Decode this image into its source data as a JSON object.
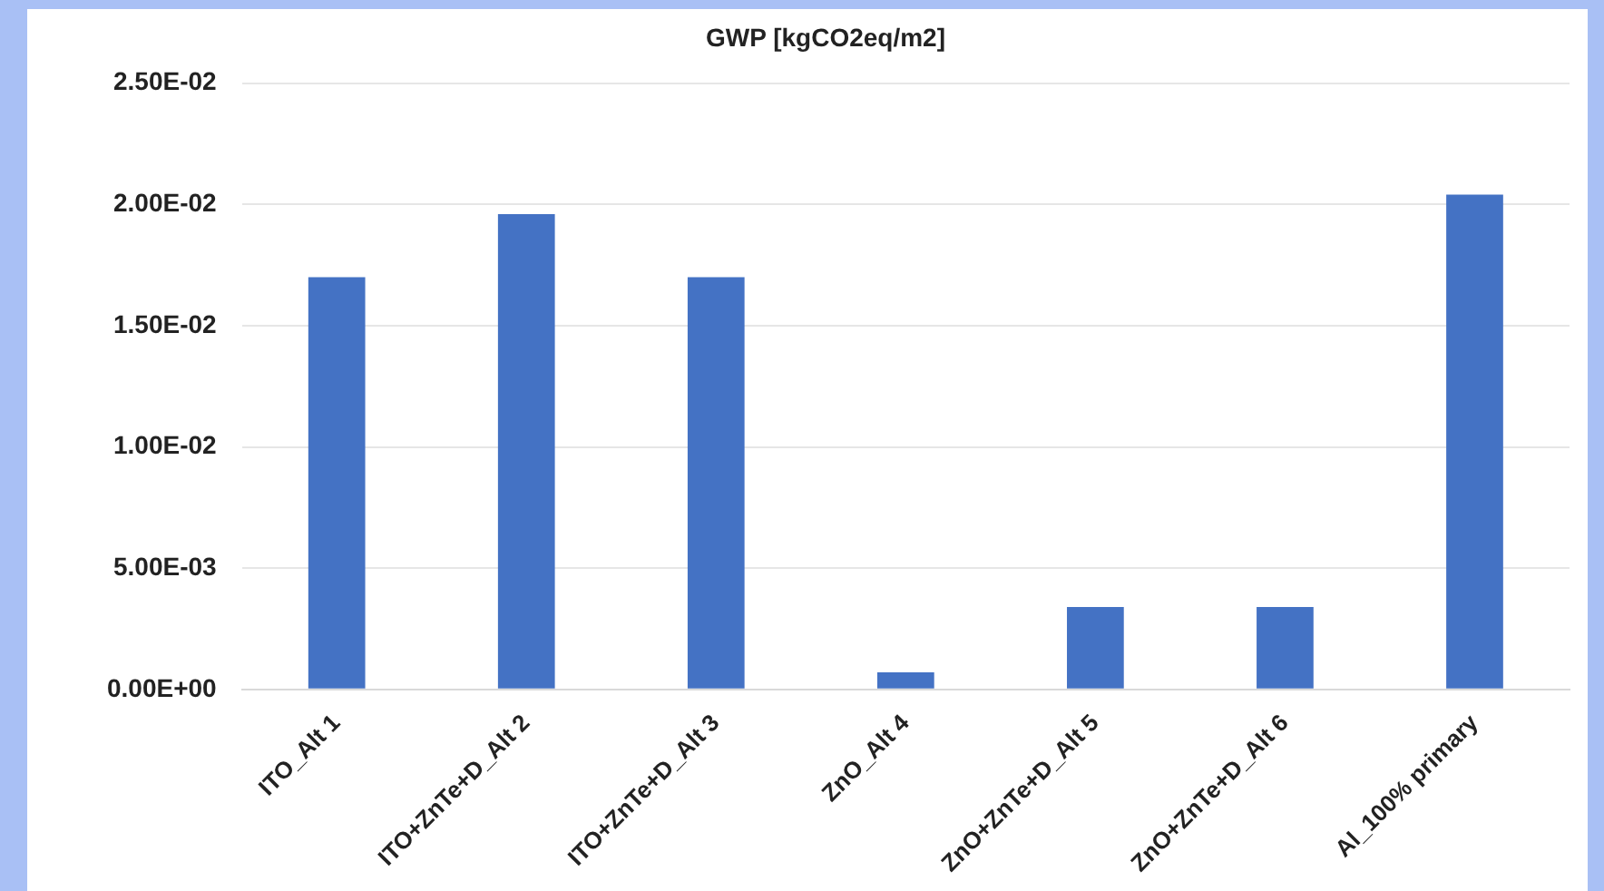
{
  "chart_data": {
    "type": "bar",
    "title": "GWP [kgCO2eq/m2]",
    "categories": [
      "ITO_Alt 1",
      "ITO+ZnTe+D_Alt 2",
      "ITO+ZnTe+D_Alt 3",
      "ZnO_Alt 4",
      "ZnO+ZnTe+D_Alt 5",
      "ZnO+ZnTe+D_Alt 6",
      "Al_100% primary"
    ],
    "values": [
      0.017,
      0.0196,
      0.017,
      0.0007,
      0.0034,
      0.0034,
      0.0204
    ],
    "color": "#4472c4",
    "ylim": [
      0,
      0.025
    ],
    "yticks": [
      {
        "value": 0,
        "label": "0.00E+00"
      },
      {
        "value": 0.005,
        "label": "5.00E-03"
      },
      {
        "value": 0.01,
        "label": "1.00E-02"
      },
      {
        "value": 0.015,
        "label": "1.50E-02"
      },
      {
        "value": 0.02,
        "label": "2.00E-02"
      },
      {
        "value": 0.025,
        "label": "2.50E-02"
      }
    ],
    "grid": "y",
    "legend": false
  }
}
